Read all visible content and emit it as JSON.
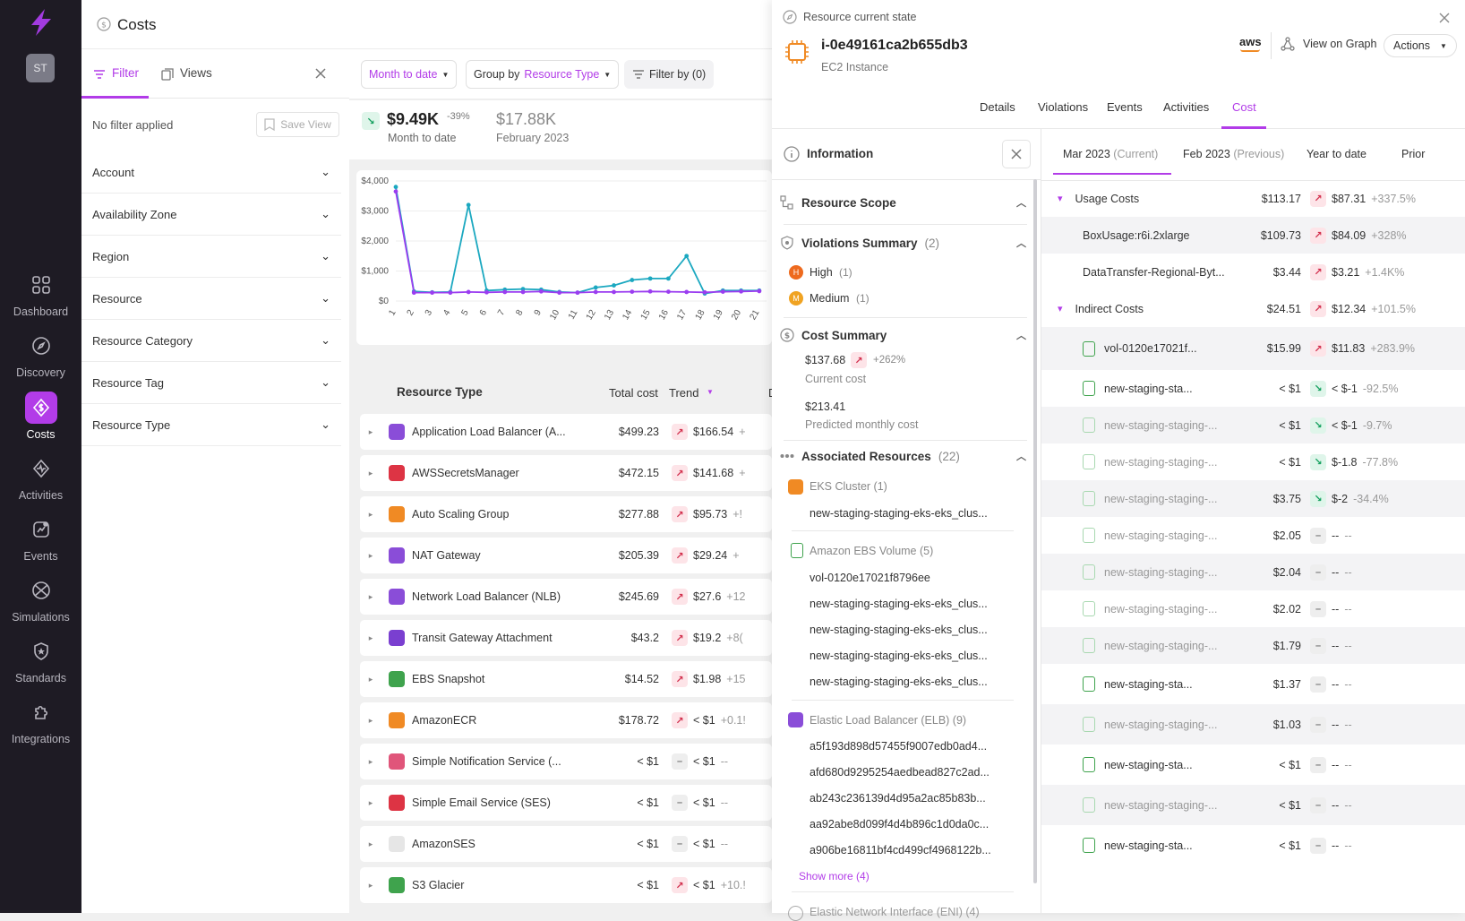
{
  "sidebar": {
    "avatar": "ST",
    "items": [
      {
        "label": "Dashboard",
        "icon": "dashboard-icon"
      },
      {
        "label": "Discovery",
        "icon": "compass-icon"
      },
      {
        "label": "Costs",
        "icon": "dollar-icon"
      },
      {
        "label": "Activities",
        "icon": "activity-icon"
      },
      {
        "label": "Events",
        "icon": "events-icon"
      },
      {
        "label": "Simulations",
        "icon": "simulations-icon"
      },
      {
        "label": "Standards",
        "icon": "shield-star-icon"
      },
      {
        "label": "Integrations",
        "icon": "puzzle-icon"
      }
    ]
  },
  "header": {
    "title": "Costs"
  },
  "filter_panel": {
    "tab_filter": "Filter",
    "tab_views": "Views",
    "no_filter": "No filter applied",
    "save_view": "Save View",
    "facets": [
      "Account",
      "Availability Zone",
      "Region",
      "Resource",
      "Resource Category",
      "Resource Tag",
      "Resource Type"
    ]
  },
  "toolbar": {
    "range": "Month to date",
    "group_prefix": "Group by",
    "group_value": "Resource Type",
    "filter_by": "Filter by (0)"
  },
  "kpi": {
    "current_value": "$9.49K",
    "current_change": "-39%",
    "current_label": "Month to date",
    "previous_value": "$17.88K",
    "previous_label": "February 2023"
  },
  "chart_data": {
    "type": "line",
    "x": [
      1,
      2,
      3,
      4,
      5,
      6,
      7,
      8,
      9,
      10,
      11,
      12,
      13,
      14,
      15,
      16,
      17,
      18,
      19,
      20,
      21
    ],
    "x_tick_labels": [
      "1",
      "2",
      "3",
      "4",
      "5",
      "6",
      "7",
      "8",
      "9",
      "10",
      "11",
      "12",
      "13",
      "14",
      "15",
      "16",
      "17",
      "18",
      "19",
      "20",
      "21"
    ],
    "y_tick_labels": [
      "$4,000",
      "$3,000",
      "$2,000",
      "$1,000",
      "$0"
    ],
    "ylim": [
      0,
      4000
    ],
    "series": [
      {
        "color": "#1ba8c0",
        "values": [
          3800,
          320,
          290,
          300,
          3200,
          350,
          380,
          400,
          380,
          300,
          280,
          450,
          520,
          700,
          750,
          750,
          1500,
          250,
          350,
          350,
          350
        ]
      },
      {
        "color": "#9b3df0",
        "values": [
          3650,
          280,
          280,
          280,
          300,
          290,
          300,
          300,
          320,
          280,
          280,
          300,
          300,
          310,
          320,
          310,
          300,
          290,
          310,
          320,
          330
        ]
      }
    ],
    "xlabel": "",
    "ylabel": "",
    "title": ""
  },
  "table": {
    "headers": {
      "type": "Resource Type",
      "total": "Total cost",
      "trend": "Trend",
      "extra": "D"
    },
    "rows": [
      {
        "name": "Application Load Balancer (A...",
        "total": "$499.23",
        "dir": "up",
        "trend": "$166.54",
        "pct": "+",
        "color": "#8a4dd8"
      },
      {
        "name": "AWSSecretsManager",
        "total": "$472.15",
        "dir": "up",
        "trend": "$141.68",
        "pct": "+",
        "color": "#dd3444"
      },
      {
        "name": "Auto Scaling Group",
        "total": "$277.88",
        "dir": "up",
        "trend": "$95.73",
        "pct": "+!",
        "color": "#f08a24"
      },
      {
        "name": "NAT Gateway",
        "total": "$205.39",
        "dir": "up",
        "trend": "$29.24",
        "pct": "+",
        "color": "#8a4dd8"
      },
      {
        "name": "Network Load Balancer (NLB)",
        "total": "$245.69",
        "dir": "up",
        "trend": "$27.6",
        "pct": "+12",
        "color": "#8a4dd8"
      },
      {
        "name": "Transit Gateway Attachment",
        "total": "$43.2",
        "dir": "up",
        "trend": "$19.2",
        "pct": "+8(",
        "color": "#7a3fd0"
      },
      {
        "name": "EBS Snapshot",
        "total": "$14.52",
        "dir": "up",
        "trend": "$1.98",
        "pct": "+15",
        "color": "#3fa34d"
      },
      {
        "name": "AmazonECR",
        "total": "$178.72",
        "dir": "up",
        "trend": "< $1",
        "pct": "+0.1!",
        "color": "#f08a24"
      },
      {
        "name": "Simple Notification Service (...",
        "total": "< $1",
        "dir": "flat",
        "trend": "< $1",
        "pct": "--",
        "color": "#e0557a"
      },
      {
        "name": "Simple Email Service (SES)",
        "total": "< $1",
        "dir": "flat",
        "trend": "< $1",
        "pct": "--",
        "color": "#dd3444"
      },
      {
        "name": "AmazonSES",
        "total": "< $1",
        "dir": "flat",
        "trend": "< $1",
        "pct": "--",
        "color": "#e6e6e6"
      },
      {
        "name": "S3 Glacier",
        "total": "< $1",
        "dir": "up",
        "trend": "< $1",
        "pct": "+10.!",
        "color": "#3fa34d"
      }
    ]
  },
  "drawer": {
    "state_label": "Resource current state",
    "resource_id": "i-0e49161ca2b655db3",
    "resource_type": "EC2 Instance",
    "aws": "aws",
    "view_on_graph": "View on Graph",
    "actions": "Actions",
    "tabs": [
      "Details",
      "Violations",
      "Events",
      "Activities",
      "Cost"
    ],
    "active_tab": "Cost"
  },
  "info": {
    "title": "Information",
    "scope": "Resource Scope",
    "violations_title": "Violations Summary",
    "violations_count": "(2)",
    "high": "High",
    "high_count": "(1)",
    "medium": "Medium",
    "medium_count": "(1)",
    "cost_title": "Cost Summary",
    "current_cost": "$137.68",
    "current_change": "+262%",
    "current_label": "Current cost",
    "predicted_cost": "$213.41",
    "predicted_label": "Predicted monthly cost",
    "assoc_title": "Associated Resources",
    "assoc_count": "(22)",
    "eks_title": "EKS Cluster (1)",
    "eks_items": [
      "new-staging-staging-eks-eks_clus..."
    ],
    "ebs_title": "Amazon EBS Volume (5)",
    "ebs_items": [
      "vol-0120e17021f8796ee",
      "new-staging-staging-eks-eks_clus...",
      "new-staging-staging-eks-eks_clus...",
      "new-staging-staging-eks-eks_clus...",
      "new-staging-staging-eks-eks_clus..."
    ],
    "elb_title": "Elastic Load Balancer (ELB) (9)",
    "elb_items": [
      "a5f193d898d57455f9007edb0ad4...",
      "afd680d9295254aedbead827c2ad...",
      "ab243c236139d4d95a2ac85b83b...",
      "aa92abe8d099f4d4b896c1d0da0c...",
      "a906be16811bf4cd499cf4968122b..."
    ],
    "show_more": "Show more (4)",
    "next_section": "Elastic Network Interface (ENI) (4)"
  },
  "cost": {
    "period_tabs": [
      {
        "label": "Mar 2023",
        "sub": "(Current)"
      },
      {
        "label": "Feb 2023",
        "sub": "(Previous)"
      },
      {
        "label": "Year to date",
        "sub": ""
      },
      {
        "label": "Prior",
        "sub": ""
      }
    ],
    "groups": [
      {
        "name": "Usage Costs",
        "total": "$113.17",
        "dir": "up",
        "trend": "$87.31",
        "pct": "+337.5%"
      },
      {
        "name": "Indirect Costs",
        "total": "$24.51",
        "dir": "up",
        "trend": "$12.34",
        "pct": "+101.5%"
      }
    ],
    "usage_items": [
      {
        "name": "BoxUsage:r6i.2xlarge",
        "total": "$109.73",
        "dir": "up",
        "trend": "$84.09",
        "pct": "+328%"
      },
      {
        "name": "DataTransfer-Regional-Byt...",
        "total": "$3.44",
        "dir": "up",
        "trend": "$3.21",
        "pct": "+1.4K%"
      }
    ],
    "indirect_items": [
      {
        "name": "vol-0120e17021f...",
        "total": "$15.99",
        "dir": "up",
        "trend": "$11.83",
        "pct": "+283.9%",
        "light": false
      },
      {
        "name": "new-staging-sta...",
        "total": "< $1",
        "dir": "down",
        "trend": "< $-1",
        "pct": "-92.5%",
        "light": false
      },
      {
        "name": "new-staging-staging-...",
        "total": "< $1",
        "dir": "down",
        "trend": "< $-1",
        "pct": "-9.7%",
        "light": true
      },
      {
        "name": "new-staging-staging-...",
        "total": "< $1",
        "dir": "down",
        "trend": "$-1.8",
        "pct": "-77.8%",
        "light": true
      },
      {
        "name": "new-staging-staging-...",
        "total": "$3.75",
        "dir": "down",
        "trend": "$-2",
        "pct": "-34.4%",
        "light": true
      },
      {
        "name": "new-staging-staging-...",
        "total": "$2.05",
        "dir": "flat",
        "trend": "--",
        "pct": "--",
        "light": true
      },
      {
        "name": "new-staging-staging-...",
        "total": "$2.04",
        "dir": "flat",
        "trend": "--",
        "pct": "--",
        "light": true
      },
      {
        "name": "new-staging-staging-...",
        "total": "$2.02",
        "dir": "flat",
        "trend": "--",
        "pct": "--",
        "light": true
      },
      {
        "name": "new-staging-staging-...",
        "total": "$1.79",
        "dir": "flat",
        "trend": "--",
        "pct": "--",
        "light": true
      },
      {
        "name": "new-staging-sta...",
        "total": "$1.37",
        "dir": "flat",
        "trend": "--",
        "pct": "--",
        "light": false
      },
      {
        "name": "new-staging-staging-...",
        "total": "$1.03",
        "dir": "flat",
        "trend": "--",
        "pct": "--",
        "light": true
      },
      {
        "name": "new-staging-sta...",
        "total": "< $1",
        "dir": "flat",
        "trend": "--",
        "pct": "--",
        "light": false
      },
      {
        "name": "new-staging-staging-...",
        "total": "< $1",
        "dir": "flat",
        "trend": "--",
        "pct": "--",
        "light": true
      },
      {
        "name": "new-staging-sta...",
        "total": "< $1",
        "dir": "flat",
        "trend": "--",
        "pct": "--",
        "light": false
      }
    ]
  }
}
